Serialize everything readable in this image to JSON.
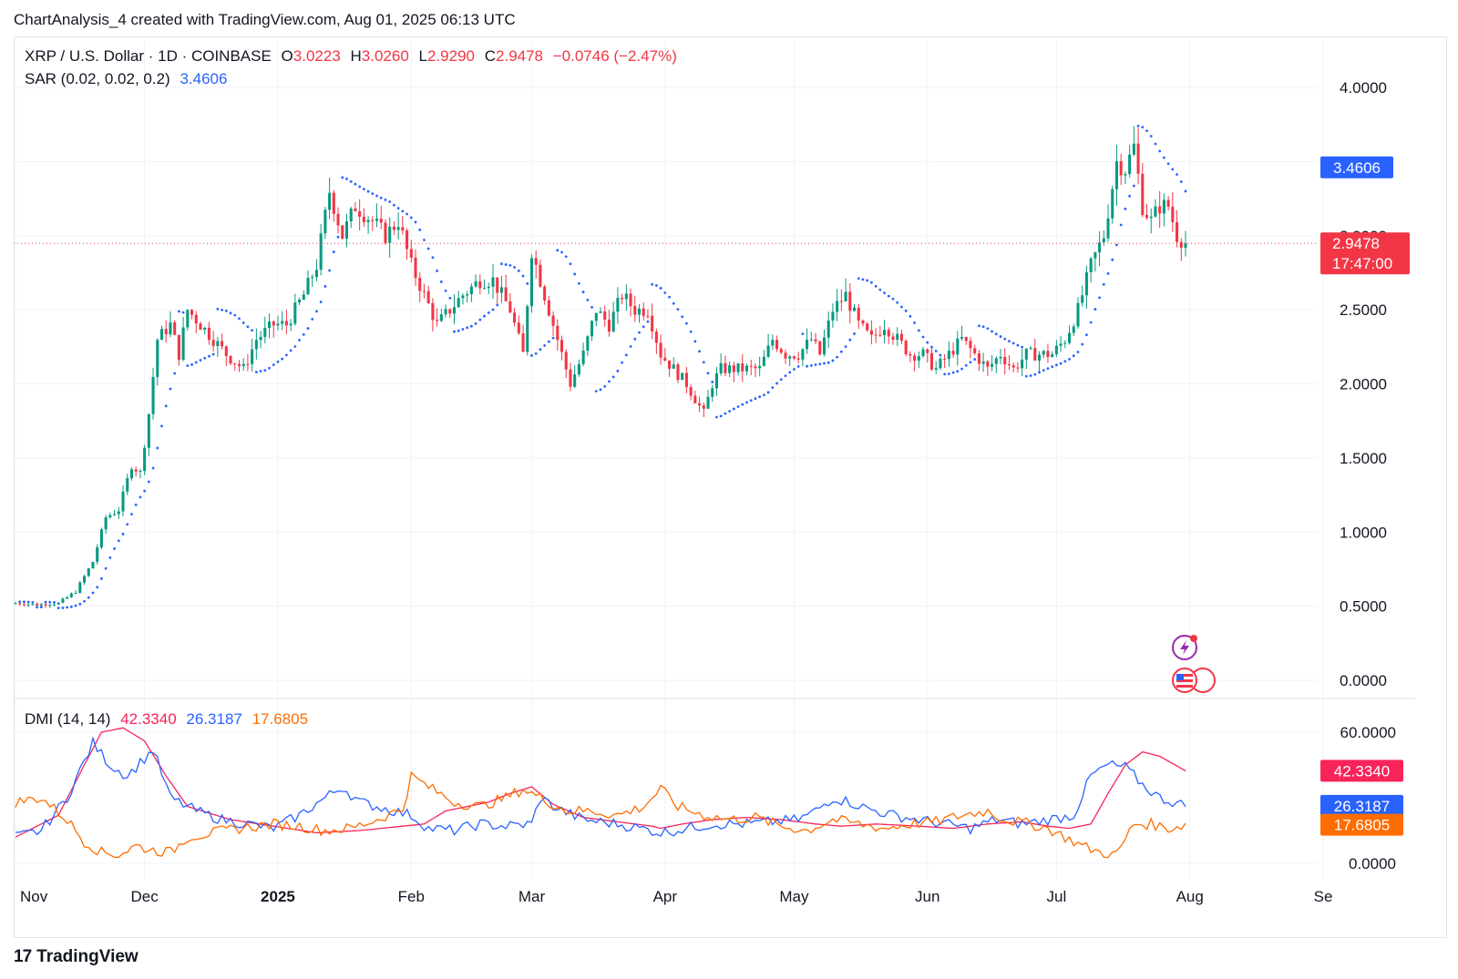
{
  "header": {
    "attribution": "ChartAnalysis_4 created with TradingView.com, Aug 01, 2025 06:13 UTC"
  },
  "legend": {
    "symbol": "XRP / U.S. Dollar · 1D · COINBASE",
    "o_label": "O",
    "o_value": "3.0223",
    "h_label": "H",
    "h_value": "3.0260",
    "l_label": "L",
    "l_value": "2.9290",
    "c_label": "C",
    "c_value": "2.9478",
    "change": "−0.0746 (−2.47%)",
    "sar_label": "SAR (0.02, 0.02, 0.2)",
    "sar_value": "3.4606",
    "dmi_label": "DMI (14, 14)",
    "dmi_adx": "42.3340",
    "dmi_plus": "26.3187",
    "dmi_minus": "17.6805"
  },
  "badges": {
    "sar": "3.4606",
    "price": "2.9478",
    "countdown": "17:47:00",
    "adx": "42.3340",
    "plus_di": "26.3187",
    "minus_di": "17.6805"
  },
  "footer": {
    "brand": "TradingView",
    "logo": "17"
  },
  "colors": {
    "up": "#089981",
    "down": "#f23645",
    "sar": "#2962ff",
    "adx": "#f7245a",
    "plus_di": "#2962ff",
    "minus_di": "#ff6d00"
  },
  "chart_data": [
    {
      "type": "candlestick",
      "title": "XRP / U.S. Dollar · 1D · COINBASE",
      "ylim": [
        0,
        4.25
      ],
      "y_ticks": [
        "4.0000",
        "3.5000",
        "3.0000",
        "2.5000",
        "2.0000",
        "1.5000",
        "1.0000",
        "0.5000",
        "0.0000"
      ],
      "x_ticks": [
        "Nov",
        "Dec",
        "2025",
        "Feb",
        "Mar",
        "Apr",
        "May",
        "Jun",
        "Jul",
        "Aug",
        "Se"
      ],
      "x_tick_index": [
        0,
        30,
        61,
        92,
        120,
        151,
        181,
        212,
        242,
        273,
        304
      ],
      "last_price": 2.9478,
      "close_anchors": [
        [
          0,
          0.52
        ],
        [
          5,
          0.51
        ],
        [
          10,
          0.52
        ],
        [
          14,
          0.6
        ],
        [
          18,
          0.8
        ],
        [
          21,
          1.1
        ],
        [
          24,
          1.15
        ],
        [
          27,
          1.45
        ],
        [
          29,
          1.4
        ],
        [
          31,
          1.8
        ],
        [
          33,
          2.3
        ],
        [
          36,
          2.4
        ],
        [
          38,
          2.2
        ],
        [
          40,
          2.5
        ],
        [
          43,
          2.4
        ],
        [
          46,
          2.3
        ],
        [
          49,
          2.2
        ],
        [
          53,
          2.1
        ],
        [
          56,
          2.3
        ],
        [
          60,
          2.4
        ],
        [
          63,
          2.4
        ],
        [
          67,
          2.6
        ],
        [
          70,
          2.8
        ],
        [
          73,
          3.3
        ],
        [
          76,
          3.0
        ],
        [
          79,
          3.2
        ],
        [
          83,
          3.1
        ],
        [
          86,
          3.0
        ],
        [
          89,
          3.1
        ],
        [
          92,
          2.8
        ],
        [
          95,
          2.6
        ],
        [
          98,
          2.4
        ],
        [
          101,
          2.5
        ],
        [
          104,
          2.6
        ],
        [
          108,
          2.7
        ],
        [
          111,
          2.7
        ],
        [
          115,
          2.5
        ],
        [
          118,
          2.2
        ],
        [
          120,
          2.9
        ],
        [
          123,
          2.6
        ],
        [
          126,
          2.3
        ],
        [
          129,
          2.0
        ],
        [
          132,
          2.2
        ],
        [
          135,
          2.5
        ],
        [
          138,
          2.4
        ],
        [
          141,
          2.6
        ],
        [
          144,
          2.5
        ],
        [
          147,
          2.5
        ],
        [
          150,
          2.2
        ],
        [
          153,
          2.1
        ],
        [
          156,
          2.0
        ],
        [
          158,
          1.9
        ],
        [
          160,
          1.8
        ],
        [
          162,
          2.0
        ],
        [
          164,
          2.1
        ],
        [
          167,
          2.1
        ],
        [
          170,
          2.1
        ],
        [
          173,
          2.1
        ],
        [
          176,
          2.3
        ],
        [
          179,
          2.2
        ],
        [
          182,
          2.2
        ],
        [
          185,
          2.3
        ],
        [
          187,
          2.2
        ],
        [
          190,
          2.5
        ],
        [
          193,
          2.6
        ],
        [
          196,
          2.4
        ],
        [
          199,
          2.3
        ],
        [
          202,
          2.4
        ],
        [
          205,
          2.3
        ],
        [
          208,
          2.2
        ],
        [
          211,
          2.2
        ],
        [
          214,
          2.1
        ],
        [
          217,
          2.2
        ],
        [
          220,
          2.3
        ],
        [
          223,
          2.2
        ],
        [
          226,
          2.1
        ],
        [
          229,
          2.2
        ],
        [
          232,
          2.1
        ],
        [
          235,
          2.2
        ],
        [
          238,
          2.2
        ],
        [
          241,
          2.2
        ],
        [
          244,
          2.3
        ],
        [
          247,
          2.5
        ],
        [
          250,
          2.8
        ],
        [
          253,
          3.0
        ],
        [
          256,
          3.5
        ],
        [
          258,
          3.45
        ],
        [
          260,
          3.6
        ],
        [
          262,
          3.2
        ],
        [
          264,
          3.1
        ],
        [
          266,
          3.2
        ],
        [
          268,
          3.2
        ],
        [
          270,
          3.0
        ],
        [
          272,
          2.95
        ]
      ]
    },
    {
      "type": "line",
      "title": "DMI (14, 14)",
      "ylim": [
        -5,
        75
      ],
      "y_ticks": [
        "60.0000",
        "0.0000"
      ],
      "series": [
        {
          "name": "ADX",
          "last": 42.334,
          "points": [
            [
              0,
              12
            ],
            [
              10,
              22
            ],
            [
              16,
              45
            ],
            [
              20,
              60
            ],
            [
              25,
              62
            ],
            [
              30,
              56
            ],
            [
              35,
              40
            ],
            [
              40,
              26
            ],
            [
              50,
              20
            ],
            [
              60,
              17
            ],
            [
              70,
              14
            ],
            [
              80,
              15
            ],
            [
              90,
              17
            ],
            [
              95,
              18
            ],
            [
              100,
              24
            ],
            [
              110,
              28
            ],
            [
              115,
              32
            ],
            [
              120,
              35
            ],
            [
              125,
              27
            ],
            [
              132,
              21
            ],
            [
              140,
              19
            ],
            [
              148,
              17
            ],
            [
              150,
              16
            ],
            [
              155,
              18
            ],
            [
              162,
              20
            ],
            [
              170,
              21
            ],
            [
              178,
              20
            ],
            [
              186,
              18
            ],
            [
              192,
              17
            ],
            [
              200,
              18
            ],
            [
              210,
              17
            ],
            [
              218,
              16
            ],
            [
              226,
              18
            ],
            [
              234,
              19
            ],
            [
              240,
              17
            ],
            [
              245,
              16
            ],
            [
              250,
              18
            ],
            [
              254,
              32
            ],
            [
              258,
              45
            ],
            [
              262,
              51
            ],
            [
              266,
              49
            ],
            [
              272,
              42.3
            ]
          ]
        },
        {
          "name": "+DI",
          "last": 26.3187,
          "points": [
            [
              0,
              12
            ],
            [
              6,
              15
            ],
            [
              12,
              30
            ],
            [
              18,
              55
            ],
            [
              22,
              45
            ],
            [
              26,
              40
            ],
            [
              32,
              52
            ],
            [
              36,
              30
            ],
            [
              42,
              24
            ],
            [
              48,
              20
            ],
            [
              54,
              18
            ],
            [
              60,
              16
            ],
            [
              66,
              22
            ],
            [
              72,
              30
            ],
            [
              76,
              35
            ],
            [
              80,
              28
            ],
            [
              86,
              25
            ],
            [
              92,
              22
            ],
            [
              96,
              16
            ],
            [
              102,
              15
            ],
            [
              108,
              18
            ],
            [
              114,
              17
            ],
            [
              120,
              18
            ],
            [
              122,
              30
            ],
            [
              126,
              25
            ],
            [
              132,
              20
            ],
            [
              140,
              18
            ],
            [
              148,
              15
            ],
            [
              150,
              14
            ],
            [
              156,
              16
            ],
            [
              162,
              18
            ],
            [
              170,
              18
            ],
            [
              176,
              19
            ],
            [
              182,
              20
            ],
            [
              186,
              24
            ],
            [
              190,
              30
            ],
            [
              194,
              28
            ],
            [
              198,
              25
            ],
            [
              204,
              22
            ],
            [
              210,
              20
            ],
            [
              216,
              18
            ],
            [
              222,
              16
            ],
            [
              228,
              20
            ],
            [
              234,
              18
            ],
            [
              240,
              20
            ],
            [
              246,
              22
            ],
            [
              250,
              40
            ],
            [
              254,
              45
            ],
            [
              258,
              44
            ],
            [
              262,
              36
            ],
            [
              266,
              30
            ],
            [
              272,
              26.3
            ]
          ]
        },
        {
          "name": "−DI",
          "last": 17.6805,
          "points": [
            [
              0,
              28
            ],
            [
              6,
              30
            ],
            [
              12,
              20
            ],
            [
              16,
              10
            ],
            [
              20,
              5
            ],
            [
              24,
              4
            ],
            [
              28,
              8
            ],
            [
              32,
              6
            ],
            [
              36,
              5
            ],
            [
              40,
              12
            ],
            [
              46,
              14
            ],
            [
              52,
              16
            ],
            [
              60,
              18
            ],
            [
              66,
              17
            ],
            [
              72,
              15
            ],
            [
              78,
              16
            ],
            [
              84,
              20
            ],
            [
              90,
              25
            ],
            [
              92,
              40
            ],
            [
              96,
              35
            ],
            [
              102,
              28
            ],
            [
              108,
              26
            ],
            [
              114,
              30
            ],
            [
              118,
              34
            ],
            [
              122,
              30
            ],
            [
              128,
              24
            ],
            [
              134,
              24
            ],
            [
              140,
              22
            ],
            [
              146,
              26
            ],
            [
              150,
              34
            ],
            [
              154,
              26
            ],
            [
              160,
              22
            ],
            [
              166,
              20
            ],
            [
              172,
              21
            ],
            [
              178,
              17
            ],
            [
              184,
              15
            ],
            [
              190,
              20
            ],
            [
              196,
              18
            ],
            [
              202,
              16
            ],
            [
              208,
              18
            ],
            [
              214,
              19
            ],
            [
              220,
              22
            ],
            [
              226,
              24
            ],
            [
              230,
              20
            ],
            [
              236,
              18
            ],
            [
              240,
              16
            ],
            [
              244,
              12
            ],
            [
              248,
              8
            ],
            [
              252,
              5
            ],
            [
              256,
              4
            ],
            [
              260,
              18
            ],
            [
              264,
              18
            ],
            [
              268,
              16
            ],
            [
              272,
              17.7
            ]
          ]
        }
      ]
    }
  ]
}
